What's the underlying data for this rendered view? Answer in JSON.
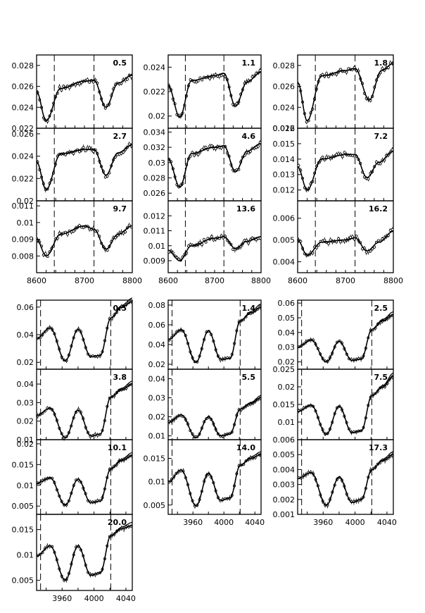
{
  "figure": {
    "top_block": {
      "x_ticks": [
        "8600",
        "8700",
        "8800"
      ],
      "x_range": [
        8600,
        8800
      ],
      "dashed_lines_x": [
        8600,
        8637,
        8720
      ]
    },
    "bottom_block": {
      "x_ticks": [
        "3960",
        "4000",
        "4040"
      ],
      "x_range": [
        3928,
        4048
      ],
      "dashed_lines_x": [
        3933,
        4021
      ]
    }
  },
  "chart_data": [
    {
      "type": "line",
      "label": "0.5",
      "ylim": [
        0.022,
        0.029
      ],
      "yticks": [
        "0.022",
        "0.024",
        "0.026",
        "0.028"
      ],
      "x": [
        8600,
        8620,
        8650,
        8700,
        8720,
        8745,
        8770,
        8800
      ],
      "y": [
        0.0255,
        0.0227,
        0.0258,
        0.0265,
        0.0266,
        0.024,
        0.0263,
        0.0271
      ]
    },
    {
      "type": "line",
      "label": "1.1",
      "ylim": [
        0.019,
        0.025
      ],
      "yticks": [
        "0.02",
        "0.022",
        "0.024"
      ],
      "x": [
        8600,
        8625,
        8650,
        8700,
        8720,
        8745,
        8770,
        8800
      ],
      "y": [
        0.0225,
        0.0199,
        0.0229,
        0.0233,
        0.0235,
        0.0208,
        0.0228,
        0.0236
      ]
    },
    {
      "type": "line",
      "label": "1.8",
      "ylim": [
        0.022,
        0.029
      ],
      "yticks": [
        "0.022",
        "0.024",
        "0.026",
        "0.028"
      ],
      "x": [
        8600,
        8620,
        8650,
        8700,
        8720,
        8750,
        8775,
        8800
      ],
      "y": [
        0.0264,
        0.0227,
        0.027,
        0.0275,
        0.0277,
        0.0247,
        0.0275,
        0.0282
      ]
    },
    {
      "type": "line",
      "label": "2.7",
      "ylim": [
        0.02,
        0.0265
      ],
      "yticks": [
        "0.02",
        "0.022",
        "0.024",
        "0.026"
      ],
      "x": [
        8600,
        8620,
        8650,
        8700,
        8720,
        8745,
        8770,
        8800
      ],
      "y": [
        0.0235,
        0.021,
        0.0242,
        0.0246,
        0.0246,
        0.0223,
        0.0243,
        0.025
      ]
    },
    {
      "type": "line",
      "label": "4.6",
      "ylim": [
        0.025,
        0.0345
      ],
      "yticks": [
        "0.026",
        "0.028",
        "0.03",
        "0.032",
        "0.034"
      ],
      "x": [
        8600,
        8625,
        8650,
        8700,
        8720,
        8745,
        8770,
        8800
      ],
      "y": [
        0.0305,
        0.0268,
        0.0312,
        0.032,
        0.0322,
        0.0288,
        0.0315,
        0.0325
      ]
    },
    {
      "type": "line",
      "label": "7.2",
      "ylim": [
        0.0113,
        0.016
      ],
      "yticks": [
        "0.012",
        "0.013",
        "0.014",
        "0.015",
        "0.016"
      ],
      "x": [
        8600,
        8620,
        8650,
        8700,
        8720,
        8745,
        8770,
        8800
      ],
      "y": [
        0.0135,
        0.012,
        0.014,
        0.0143,
        0.0143,
        0.0128,
        0.0138,
        0.0145
      ]
    },
    {
      "type": "line",
      "label": "9.7",
      "ylim": [
        0.007,
        0.0113
      ],
      "yticks": [
        "0.008",
        "0.009",
        "0.01",
        "0.011"
      ],
      "x": [
        8600,
        8620,
        8650,
        8700,
        8720,
        8745,
        8770,
        8800
      ],
      "y": [
        0.009,
        0.008,
        0.0093,
        0.0098,
        0.0096,
        0.0084,
        0.0093,
        0.0098
      ]
    },
    {
      "type": "line",
      "label": "13.6",
      "ylim": [
        0.0082,
        0.013
      ],
      "yticks": [
        "0.009",
        "0.01",
        "0.011",
        "0.012"
      ],
      "x": [
        8600,
        8625,
        8650,
        8700,
        8720,
        8745,
        8770,
        8800
      ],
      "y": [
        0.0097,
        0.009,
        0.01,
        0.0105,
        0.0106,
        0.0098,
        0.0103,
        0.0106
      ]
    },
    {
      "type": "line",
      "label": "16.2",
      "ylim": [
        0.0035,
        0.0068
      ],
      "yticks": [
        "0.004",
        "0.005",
        "0.006"
      ],
      "x": [
        8600,
        8620,
        8650,
        8700,
        8720,
        8745,
        8770,
        8800
      ],
      "y": [
        0.005,
        0.0043,
        0.0049,
        0.005,
        0.0051,
        0.0045,
        0.0049,
        0.0054
      ]
    },
    {
      "type": "line",
      "label": "0.5",
      "ylim": [
        0.015,
        0.065
      ],
      "yticks": [
        "0.02",
        "0.04",
        "0.06"
      ],
      "x": [
        3928,
        3945,
        3964,
        3980,
        3996,
        4008,
        4021,
        4035,
        4048
      ],
      "y": [
        0.037,
        0.045,
        0.021,
        0.044,
        0.024,
        0.025,
        0.052,
        0.06,
        0.064
      ]
    },
    {
      "type": "line",
      "label": "1.4",
      "ylim": [
        0.015,
        0.085
      ],
      "yticks": [
        "0.02",
        "0.04",
        "0.06",
        "0.08"
      ],
      "x": [
        3928,
        3945,
        3964,
        3980,
        3996,
        4008,
        4021,
        4035,
        4048
      ],
      "y": [
        0.045,
        0.055,
        0.022,
        0.054,
        0.025,
        0.026,
        0.064,
        0.072,
        0.078
      ]
    },
    {
      "type": "line",
      "label": "2.5",
      "ylim": [
        0.015,
        0.062
      ],
      "yticks": [
        "0.02",
        "0.03",
        "0.04",
        "0.05",
        "0.06"
      ],
      "x": [
        3928,
        3945,
        3964,
        3980,
        3996,
        4008,
        4021,
        4035,
        4048
      ],
      "y": [
        0.03,
        0.035,
        0.02,
        0.034,
        0.021,
        0.022,
        0.042,
        0.048,
        0.052
      ]
    },
    {
      "type": "line",
      "label": "3.8",
      "ylim": [
        0.01,
        0.048
      ],
      "yticks": [
        "0.01",
        "0.02",
        "0.03",
        "0.04"
      ],
      "x": [
        3928,
        3945,
        3964,
        3980,
        3996,
        4008,
        4021,
        4035,
        4048
      ],
      "y": [
        0.023,
        0.027,
        0.011,
        0.026,
        0.012,
        0.013,
        0.033,
        0.037,
        0.04
      ]
    },
    {
      "type": "line",
      "label": "5.5",
      "ylim": [
        0.008,
        0.045
      ],
      "yticks": [
        "0.01",
        "0.02",
        "0.03",
        "0.04"
      ],
      "x": [
        3928,
        3945,
        3964,
        3980,
        3996,
        4008,
        4021,
        4035,
        4048
      ],
      "y": [
        0.017,
        0.021,
        0.009,
        0.02,
        0.01,
        0.011,
        0.024,
        0.027,
        0.03
      ]
    },
    {
      "type": "line",
      "label": "7.5",
      "ylim": [
        0.005,
        0.025
      ],
      "yticks": [
        "0.01",
        "0.015",
        "0.02",
        "0.025"
      ],
      "x": [
        3928,
        3945,
        3964,
        3980,
        3996,
        4008,
        4021,
        4035,
        4048
      ],
      "y": [
        0.013,
        0.0148,
        0.0065,
        0.0145,
        0.007,
        0.0075,
        0.0175,
        0.02,
        0.023
      ]
    },
    {
      "type": "line",
      "label": "10.1",
      "ylim": [
        0.003,
        0.021
      ],
      "yticks": [
        "0.005",
        "0.01",
        "0.015",
        "0.02"
      ],
      "x": [
        3928,
        3945,
        3964,
        3980,
        3996,
        4008,
        4021,
        4035,
        4048
      ],
      "y": [
        0.0105,
        0.0118,
        0.0052,
        0.0115,
        0.0058,
        0.0062,
        0.014,
        0.016,
        0.0172
      ]
    },
    {
      "type": "line",
      "label": "14.0",
      "ylim": [
        0.003,
        0.019
      ],
      "yticks": [
        "0.005",
        "0.01",
        "0.015"
      ],
      "x": [
        3928,
        3945,
        3964,
        3980,
        3996,
        4008,
        4021,
        4035,
        4048
      ],
      "y": [
        0.01,
        0.0125,
        0.0048,
        0.0118,
        0.006,
        0.0065,
        0.0135,
        0.015,
        0.0158
      ]
    },
    {
      "type": "line",
      "label": "17.3",
      "ylim": [
        0.001,
        0.006
      ],
      "yticks": [
        "0.001",
        "0.002",
        "0.003",
        "0.004",
        "0.005",
        "0.006"
      ],
      "x": [
        3928,
        3945,
        3964,
        3980,
        3996,
        4008,
        4021,
        4035,
        4048
      ],
      "y": [
        0.0034,
        0.0038,
        0.0016,
        0.0035,
        0.0018,
        0.002,
        0.004,
        0.0046,
        0.005
      ]
    },
    {
      "type": "line",
      "label": "20.0",
      "ylim": [
        0.003,
        0.018
      ],
      "yticks": [
        "0.005",
        "0.01",
        "0.015"
      ],
      "x": [
        3928,
        3945,
        3964,
        3980,
        3996,
        4008,
        4021,
        4035,
        4048
      ],
      "y": [
        0.0098,
        0.0118,
        0.005,
        0.0118,
        0.006,
        0.0065,
        0.0138,
        0.0152,
        0.0158
      ]
    }
  ]
}
